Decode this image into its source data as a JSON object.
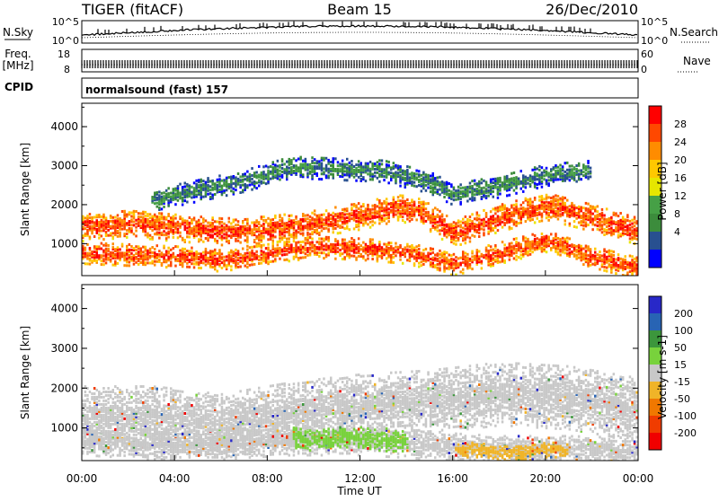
{
  "header": {
    "radar": "TIGER (fitACF)",
    "beam": "Beam 15",
    "date": "26/Dec/2010"
  },
  "top_panels": {
    "nsky_label": "N.Sky",
    "nsky_ticks": [
      "10^5",
      "10^0"
    ],
    "nsearch_label": "N.Search",
    "nsearch_ticks": [
      "10^5",
      "10^0"
    ],
    "freq_label": "Freq.",
    "freq_unit": "[MHz]",
    "freq_ticks": [
      "18",
      "8"
    ],
    "nave_label": "Nave",
    "nave_ticks": [
      "60",
      "0"
    ],
    "cpid_label": "CPID",
    "cpid_text": "normalsound (fast) 157"
  },
  "power_panel": {
    "ylabel": "Slant Range [km]",
    "yticks": [
      "4000",
      "3000",
      "2000",
      "1000"
    ],
    "colorbar_label": "Power [dB]",
    "colorbar_ticks": [
      "28",
      "24",
      "20",
      "16",
      "12",
      "8",
      "4"
    ],
    "colors": [
      "#ff0000",
      "#ff4800",
      "#ff8c00",
      "#ffc800",
      "#e6e600",
      "#46a046",
      "#3c8c3c",
      "#285090",
      "#0000ff"
    ]
  },
  "velocity_panel": {
    "ylabel": "Slant Range [km]",
    "yticks": [
      "4000",
      "3000",
      "2000",
      "1000"
    ],
    "colorbar_label": "Velocity [m s-1]",
    "colorbar_ticks": [
      "200",
      "100",
      "50",
      "15",
      "-15",
      "-50",
      "-100",
      "-200"
    ],
    "colors": [
      "#2828c8",
      "#2864b4",
      "#3c963c",
      "#78d23c",
      "#c8c8c8",
      "#f0b428",
      "#f07800",
      "#f03c00",
      "#f00000"
    ]
  },
  "x_axis": {
    "xlabel": "Time UT",
    "ticks": [
      "00:00",
      "04:00",
      "08:00",
      "12:00",
      "16:00",
      "20:00",
      "00:00"
    ]
  },
  "chart_data": [
    {
      "type": "heatmap",
      "title": "Beam 15",
      "xlabel": "Time UT",
      "ylabel": "Slant Range [km]",
      "xlim": [
        0,
        24
      ],
      "ylim": [
        180,
        4600
      ],
      "colorbar": {
        "label": "Power [dB]",
        "ticks": [
          4,
          8,
          12,
          16,
          20,
          24,
          28
        ]
      },
      "bands": [
        {
          "t": [
            0,
            2,
            4,
            6,
            8,
            10,
            12,
            13.5,
            14.5,
            16,
            18,
            20,
            22,
            24
          ],
          "range": [
            1450,
            1550,
            1450,
            1350,
            1400,
            1550,
            1750,
            1950,
            1900,
            1300,
            1700,
            2000,
            1700,
            1350
          ],
          "width_km": 350,
          "power_db": 24
        },
        {
          "t": [
            0,
            2,
            4,
            6,
            8,
            10,
            12,
            14,
            16,
            18,
            20,
            22,
            24
          ],
          "range": [
            800,
            750,
            700,
            600,
            800,
            950,
            900,
            800,
            500,
            800,
            1100,
            700,
            400
          ],
          "width_km": 280,
          "power_db": 24
        },
        {
          "t": [
            3,
            5,
            7,
            9,
            11,
            13,
            15,
            16,
            18,
            20,
            22
          ],
          "range": [
            2150,
            2400,
            2650,
            3000,
            2950,
            2900,
            2600,
            2300,
            2500,
            2800,
            2900
          ],
          "width_km": 280,
          "power_db": 10
        }
      ]
    },
    {
      "type": "heatmap",
      "xlabel": "Time UT",
      "ylabel": "Slant Range [km]",
      "xlim": [
        0,
        24
      ],
      "ylim": [
        180,
        4600
      ],
      "colorbar": {
        "label": "Velocity [m s-1]",
        "ticks": [
          -200,
          -100,
          -50,
          -15,
          15,
          50,
          100,
          200
        ]
      },
      "bands": [
        {
          "t": [
            0,
            3,
            6,
            9,
            12,
            15,
            18,
            21,
            24
          ],
          "range": [
            1300,
            1300,
            1100,
            1400,
            1600,
            1700,
            1900,
            1800,
            1500
          ],
          "width_km": 800,
          "velocity": 0
        },
        {
          "t": [
            0,
            3,
            6,
            9,
            12,
            15,
            18,
            21,
            24
          ],
          "range": [
            700,
            600,
            600,
            700,
            700,
            600,
            500,
            500,
            450
          ],
          "width_km": 350,
          "velocity": 0
        },
        {
          "t": [
            9,
            10,
            11,
            12,
            13,
            14
          ],
          "range": [
            800,
            700,
            800,
            800,
            700,
            700
          ],
          "width_km": 250,
          "velocity": 50
        },
        {
          "t": [
            16,
            17,
            18,
            19,
            20,
            21
          ],
          "range": [
            500,
            500,
            400,
            400,
            500,
            500
          ],
          "width_km": 200,
          "velocity": -50
        }
      ]
    }
  ]
}
